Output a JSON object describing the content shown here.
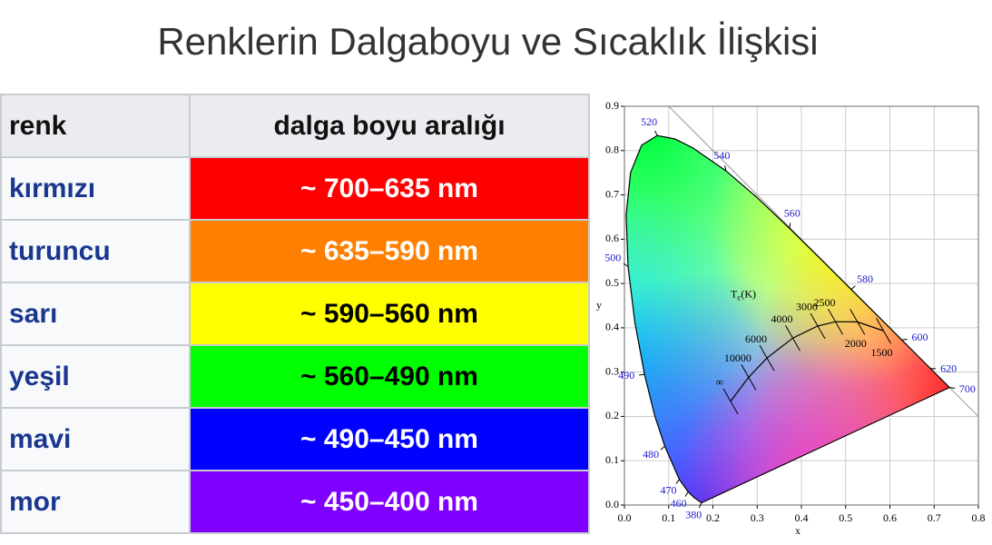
{
  "title": "Renklerin Dalgaboyu ve Sıcaklık İlişkisi",
  "table": {
    "header": [
      "renk",
      "dalga boyu aralığı"
    ],
    "rows": [
      {
        "name": "kırmızı",
        "range": "~ 700–635 nm",
        "color": "#ff0000",
        "text_color": "#ffffff"
      },
      {
        "name": "turuncu",
        "range": "~ 635–590 nm",
        "color": "#ff8000",
        "text_color": "#ffffff"
      },
      {
        "name": "sarı",
        "range": "~ 590–560 nm",
        "color": "#ffff00",
        "text_color": "#000000"
      },
      {
        "name": "yeşil",
        "range": "~ 560–490 nm",
        "color": "#00ff00",
        "text_color": "#000000"
      },
      {
        "name": "mavi",
        "range": "~ 490–450 nm",
        "color": "#0000ff",
        "text_color": "#ffffff"
      },
      {
        "name": "mor",
        "range": "~ 450–400 nm",
        "color": "#8000ff",
        "text_color": "#ffffff"
      }
    ]
  },
  "chart_data": {
    "type": "chromaticity",
    "xlabel": "x",
    "ylabel": "y",
    "xlim": [
      0,
      0.8
    ],
    "ylim": [
      0,
      0.9
    ],
    "xticks": [
      {
        "value": 0,
        "label": "0.0"
      },
      {
        "value": 0.1,
        "label": "0.1"
      },
      {
        "value": 0.2,
        "label": "0.2"
      },
      {
        "value": 0.3,
        "label": "0.3"
      },
      {
        "value": 0.4,
        "label": "0.4"
      },
      {
        "value": 0.5,
        "label": "0.5"
      },
      {
        "value": 0.6,
        "label": "0.6"
      },
      {
        "value": 0.7,
        "label": "0.7"
      },
      {
        "value": 0.8,
        "label": "0.8"
      }
    ],
    "yticks": [
      {
        "value": 0,
        "label": "0.0"
      },
      {
        "value": 0.1,
        "label": "0.1"
      },
      {
        "value": 0.2,
        "label": "0.2"
      },
      {
        "value": 0.3,
        "label": "0.3"
      },
      {
        "value": 0.4,
        "label": "0.4"
      },
      {
        "value": 0.5,
        "label": "0.5"
      },
      {
        "value": 0.6,
        "label": "0.6"
      },
      {
        "value": 0.7,
        "label": "0.7"
      },
      {
        "value": 0.8,
        "label": "0.8"
      },
      {
        "value": 0.9,
        "label": "0.9"
      }
    ],
    "grid": true,
    "locus": {
      "labels": [
        "380",
        null,
        "460",
        "470",
        "480",
        null,
        "490",
        null,
        "500",
        null,
        null,
        null,
        "520",
        null,
        null,
        "540",
        null,
        "560",
        null,
        "580",
        null,
        "600",
        "620",
        null,
        "700"
      ],
      "x": [
        0.1741,
        0.1566,
        0.144,
        0.1241,
        0.0913,
        0.0687,
        0.0454,
        0.0235,
        0.0082,
        0.0039,
        0.0139,
        0.0389,
        0.0743,
        0.1142,
        0.1547,
        0.2296,
        0.3016,
        0.3731,
        0.4441,
        0.5125,
        0.5752,
        0.627,
        0.6915,
        0.719,
        0.7347
      ],
      "y": [
        0.005,
        0.0177,
        0.0297,
        0.0578,
        0.1327,
        0.2007,
        0.295,
        0.4127,
        0.5384,
        0.6548,
        0.7502,
        0.812,
        0.8338,
        0.8262,
        0.8059,
        0.7543,
        0.6923,
        0.6245,
        0.5547,
        0.4866,
        0.4242,
        0.3725,
        0.3083,
        0.2809,
        0.2653
      ],
      "label_color": "#1a1acc"
    },
    "planck": {
      "title": {
        "main": "T",
        "sub": "c",
        "unit": "(K)"
      },
      "labels": [
        "∞",
        "10000",
        "6000",
        "4000",
        "3000",
        "2500",
        "2000",
        "1500"
      ],
      "x": [
        0.2399,
        0.2807,
        0.3221,
        0.3805,
        0.4369,
        0.477,
        0.5267,
        0.5857
      ],
      "y": [
        0.2342,
        0.2883,
        0.3318,
        0.3768,
        0.4041,
        0.4137,
        0.4133,
        0.3931
      ]
    }
  }
}
